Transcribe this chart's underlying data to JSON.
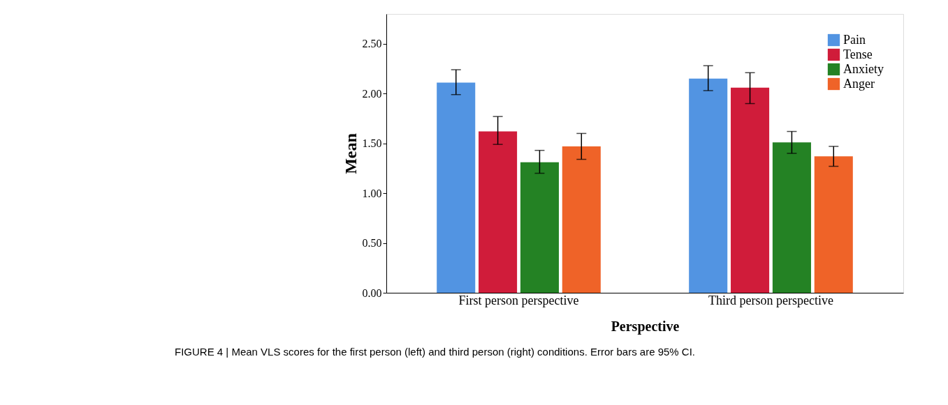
{
  "chart_data": {
    "type": "bar",
    "xlabel": "Perspective",
    "ylabel": "Mean",
    "categories": [
      "First person perspective",
      "Third person perspective"
    ],
    "series": [
      {
        "name": "Pain",
        "color": "#5294e2",
        "values": [
          2.11,
          2.15
        ],
        "errors": [
          [
            1.99,
            2.24
          ],
          [
            2.03,
            2.28
          ]
        ]
      },
      {
        "name": "Tense",
        "color": "#d01c3a",
        "values": [
          1.62,
          2.06
        ],
        "errors": [
          [
            1.49,
            1.77
          ],
          [
            1.9,
            2.21
          ]
        ]
      },
      {
        "name": "Anxiety",
        "color": "#248224",
        "values": [
          1.31,
          1.51
        ],
        "errors": [
          [
            1.2,
            1.43
          ],
          [
            1.4,
            1.62
          ]
        ]
      },
      {
        "name": "Anger",
        "color": "#ef6328",
        "values": [
          1.47,
          1.37
        ],
        "errors": [
          [
            1.34,
            1.6
          ],
          [
            1.27,
            1.47
          ]
        ]
      }
    ],
    "ylim": [
      0,
      2.8
    ],
    "yticks": [
      {
        "value": 0,
        "label": "0.00"
      },
      {
        "value": 0.5,
        "label": "0.50"
      },
      {
        "value": 1,
        "label": "1.00"
      },
      {
        "value": 1.5,
        "label": "1.50"
      },
      {
        "value": 2,
        "label": "2.00"
      },
      {
        "value": 2.5,
        "label": "2.50"
      }
    ],
    "grid": false,
    "legend": "top right",
    "annotations": [
      "FIGURE 4 | Mean VLS scores for the first person (left) and third person (right) conditions. Error bars are 95% CI."
    ]
  }
}
